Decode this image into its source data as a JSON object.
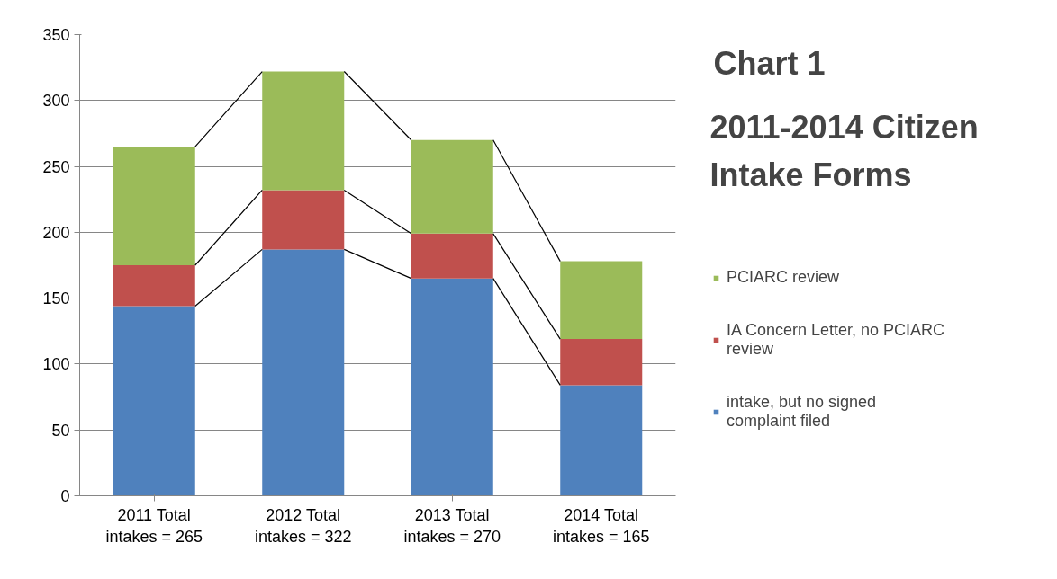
{
  "chart_data": {
    "type": "bar",
    "stacked": true,
    "title": "Chart 1",
    "subtitle": "2011-2014 Citizen Intake  Forms",
    "categories": [
      "2011 Total intakes = 265",
      "2012 Total intakes = 322",
      "2013 Total intakes = 270",
      "2014 Total intakes = 165"
    ],
    "series": [
      {
        "name": "intake, but no signed complaint filed",
        "color": "#4f81bd",
        "values": [
          144,
          187,
          165,
          84
        ]
      },
      {
        "name": "IA Concern Letter, no PCIARC review",
        "color": "#c0504d",
        "values": [
          31,
          45,
          34,
          35
        ]
      },
      {
        "name": "PCIARC review",
        "color": "#9bbb59",
        "values": [
          90,
          90,
          71,
          59
        ]
      }
    ],
    "ylim": [
      0,
      350
    ],
    "yticks": [
      0,
      50,
      100,
      150,
      200,
      250,
      300,
      350
    ],
    "grid": "y",
    "legend": "right"
  }
}
